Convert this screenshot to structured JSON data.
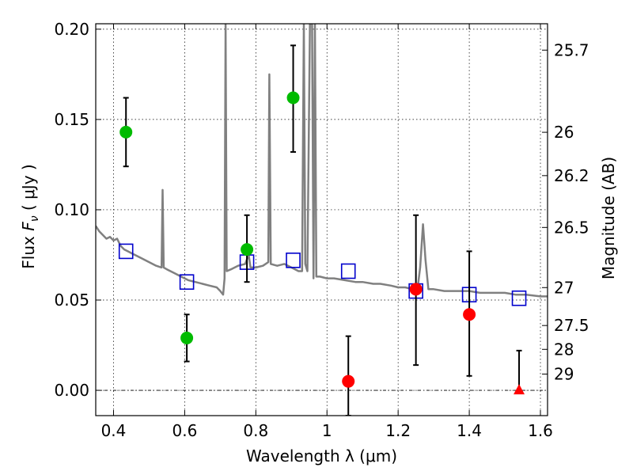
{
  "chart_data": {
    "type": "scatter",
    "xlabel": "Wavelength  λ (μm)",
    "ylabel_main": "Flux  ",
    "ylabel_symbol": "F",
    "ylabel_sub": "ν",
    "ylabel_unit": " ( μJy )",
    "y2label": "Magnitude (AB)",
    "xlim": [
      0.35,
      1.62
    ],
    "ylim": [
      -0.014,
      0.203
    ],
    "x_ticks": [
      0.4,
      0.6,
      0.8,
      1.0,
      1.2,
      1.4,
      1.6
    ],
    "x_tick_labels": [
      "0.4",
      "0.6",
      "0.8",
      "1",
      "1.2",
      "1.4",
      "1.6"
    ],
    "y_ticks": [
      0.0,
      0.05,
      0.1,
      0.15,
      0.2
    ],
    "y_tick_labels": [
      "0.00",
      "0.05",
      "0.10",
      "0.15",
      "0.20"
    ],
    "y2_ticks": [
      {
        "label": "25.7",
        "flux": 0.1884
      },
      {
        "label": "26",
        "flux": 0.1429
      },
      {
        "label": "26.2",
        "flux": 0.1189
      },
      {
        "label": "26.5",
        "flux": 0.0902
      },
      {
        "label": "27",
        "flux": 0.0569
      },
      {
        "label": "27.5",
        "flux": 0.0359
      },
      {
        "label": "28",
        "flux": 0.0227
      },
      {
        "label": "29",
        "flux": 0.009
      }
    ],
    "grid": true,
    "colors": {
      "model": "#808080",
      "detection": "#00bb00",
      "nondetection": "#ff0000",
      "model_photometry": "#0000cc",
      "errorbar": "#000000",
      "zero_line": "#000000"
    },
    "series": [
      {
        "kind": "detections",
        "points": [
          {
            "x": 0.435,
            "y": 0.143,
            "yerr_low": 0.124,
            "yerr_high": 0.162
          },
          {
            "x": 0.606,
            "y": 0.029,
            "yerr_low": 0.016,
            "yerr_high": 0.042
          },
          {
            "x": 0.775,
            "y": 0.078,
            "yerr_low": 0.06,
            "yerr_high": 0.097
          },
          {
            "x": 0.905,
            "y": 0.162,
            "yerr_low": 0.132,
            "yerr_high": 0.191
          }
        ]
      },
      {
        "kind": "nondetections",
        "points": [
          {
            "x": 1.06,
            "y": 0.005,
            "yerr_low": -0.014,
            "yerr_high": 0.03
          },
          {
            "x": 1.25,
            "y": 0.056,
            "yerr_low": 0.014,
            "yerr_high": 0.097
          },
          {
            "x": 1.4,
            "y": 0.042,
            "yerr_low": 0.008,
            "yerr_high": 0.077
          }
        ]
      },
      {
        "kind": "upper_limit",
        "points": [
          {
            "x": 1.54,
            "y": 0.0,
            "yerr_low": 0.0,
            "yerr_high": 0.022
          }
        ]
      },
      {
        "kind": "model_photometry",
        "points": [
          {
            "x": 0.435,
            "y": 0.077
          },
          {
            "x": 0.606,
            "y": 0.06
          },
          {
            "x": 0.775,
            "y": 0.071
          },
          {
            "x": 0.905,
            "y": 0.072
          },
          {
            "x": 1.06,
            "y": 0.066
          },
          {
            "x": 1.25,
            "y": 0.055
          },
          {
            "x": 1.4,
            "y": 0.053
          },
          {
            "x": 1.54,
            "y": 0.051
          }
        ]
      },
      {
        "kind": "model_spectrum",
        "points": [
          [
            0.35,
            0.091
          ],
          [
            0.36,
            0.088
          ],
          [
            0.37,
            0.086
          ],
          [
            0.38,
            0.084
          ],
          [
            0.39,
            0.085
          ],
          [
            0.4,
            0.083
          ],
          [
            0.41,
            0.084
          ],
          [
            0.42,
            0.08
          ],
          [
            0.43,
            0.078
          ],
          [
            0.44,
            0.077
          ],
          [
            0.45,
            0.076
          ],
          [
            0.46,
            0.075
          ],
          [
            0.48,
            0.073
          ],
          [
            0.5,
            0.071
          ],
          [
            0.52,
            0.069
          ],
          [
            0.535,
            0.068
          ],
          [
            0.538,
            0.111
          ],
          [
            0.541,
            0.068
          ],
          [
            0.55,
            0.067
          ],
          [
            0.57,
            0.065
          ],
          [
            0.59,
            0.063
          ],
          [
            0.61,
            0.061
          ],
          [
            0.63,
            0.06
          ],
          [
            0.65,
            0.059
          ],
          [
            0.67,
            0.058
          ],
          [
            0.69,
            0.057
          ],
          [
            0.7,
            0.055
          ],
          [
            0.708,
            0.053
          ],
          [
            0.712,
            0.062
          ],
          [
            0.715,
            0.203
          ],
          [
            0.718,
            0.066
          ],
          [
            0.73,
            0.067
          ],
          [
            0.75,
            0.069
          ],
          [
            0.77,
            0.07
          ],
          [
            0.78,
            0.075
          ],
          [
            0.785,
            0.068
          ],
          [
            0.8,
            0.068
          ],
          [
            0.82,
            0.069
          ],
          [
            0.835,
            0.071
          ],
          [
            0.838,
            0.175
          ],
          [
            0.842,
            0.07
          ],
          [
            0.86,
            0.069
          ],
          [
            0.88,
            0.07
          ],
          [
            0.9,
            0.068
          ],
          [
            0.92,
            0.066
          ],
          [
            0.93,
            0.066
          ],
          [
            0.935,
            0.203
          ],
          [
            0.939,
            0.07
          ],
          [
            0.945,
            0.066
          ],
          [
            0.952,
            0.203
          ],
          [
            0.958,
            0.203
          ],
          [
            0.962,
            0.062
          ],
          [
            0.966,
            0.203
          ],
          [
            0.97,
            0.063
          ],
          [
            0.98,
            0.063
          ],
          [
            1.0,
            0.062
          ],
          [
            1.02,
            0.062
          ],
          [
            1.05,
            0.061
          ],
          [
            1.08,
            0.06
          ],
          [
            1.1,
            0.06
          ],
          [
            1.13,
            0.059
          ],
          [
            1.15,
            0.059
          ],
          [
            1.18,
            0.058
          ],
          [
            1.2,
            0.057
          ],
          [
            1.22,
            0.057
          ],
          [
            1.24,
            0.056
          ],
          [
            1.255,
            0.057
          ],
          [
            1.262,
            0.068
          ],
          [
            1.27,
            0.092
          ],
          [
            1.277,
            0.072
          ],
          [
            1.285,
            0.056
          ],
          [
            1.3,
            0.056
          ],
          [
            1.33,
            0.055
          ],
          [
            1.36,
            0.055
          ],
          [
            1.4,
            0.055
          ],
          [
            1.43,
            0.054
          ],
          [
            1.46,
            0.054
          ],
          [
            1.5,
            0.054
          ],
          [
            1.53,
            0.053
          ],
          [
            1.56,
            0.053
          ],
          [
            1.6,
            0.052
          ],
          [
            1.62,
            0.052
          ]
        ]
      }
    ]
  }
}
